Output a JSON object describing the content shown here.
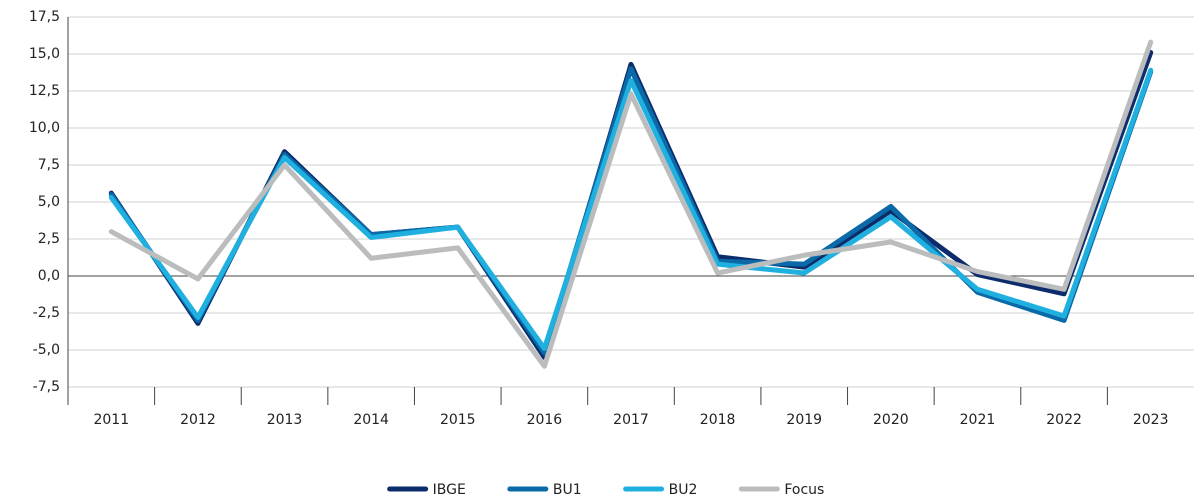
{
  "chart_data": {
    "type": "line",
    "categories": [
      "2011",
      "2012",
      "2013",
      "2014",
      "2015",
      "2016",
      "2017",
      "2018",
      "2019",
      "2020",
      "2021",
      "2022",
      "2023"
    ],
    "series": [
      {
        "name": "IBGE",
        "color": "#0d2c6c",
        "values": [
          5.6,
          -3.2,
          8.4,
          2.8,
          3.3,
          -5.5,
          14.3,
          1.3,
          0.6,
          4.4,
          0.1,
          -1.2,
          15.1
        ]
      },
      {
        "name": "BU1",
        "color": "#0a6aa8",
        "values": [
          5.5,
          -3.0,
          8.2,
          2.8,
          3.3,
          -5.2,
          14.0,
          1.0,
          0.8,
          4.7,
          -1.1,
          -3.0,
          13.8
        ]
      },
      {
        "name": "BU2",
        "color": "#1fb0e0",
        "values": [
          5.3,
          -2.8,
          8.0,
          2.6,
          3.3,
          -4.9,
          13.2,
          0.8,
          0.2,
          4.0,
          -0.9,
          -2.7,
          13.9
        ]
      },
      {
        "name": "Focus",
        "color": "#bbbcbe",
        "values": [
          3.0,
          -0.2,
          7.5,
          1.2,
          1.9,
          -6.1,
          12.3,
          0.2,
          1.4,
          2.3,
          0.3,
          -0.9,
          15.8
        ]
      }
    ],
    "ylim": [
      -7.5,
      17.5
    ],
    "yticks": [
      {
        "value": -7.5,
        "label": "-7,5"
      },
      {
        "value": -5,
        "label": "-5,0"
      },
      {
        "value": -2.5,
        "label": "-2,5"
      },
      {
        "value": 0,
        "label": "0,0"
      },
      {
        "value": 2.5,
        "label": "2,5"
      },
      {
        "value": 5,
        "label": "5,0"
      },
      {
        "value": 7.5,
        "label": "7,5"
      },
      {
        "value": 10,
        "label": "10,0"
      },
      {
        "value": 12.5,
        "label": "12,5"
      },
      {
        "value": 15,
        "label": "15,0"
      },
      {
        "value": 17.5,
        "label": "17,5"
      }
    ],
    "grid": true,
    "legend": "bottom"
  }
}
